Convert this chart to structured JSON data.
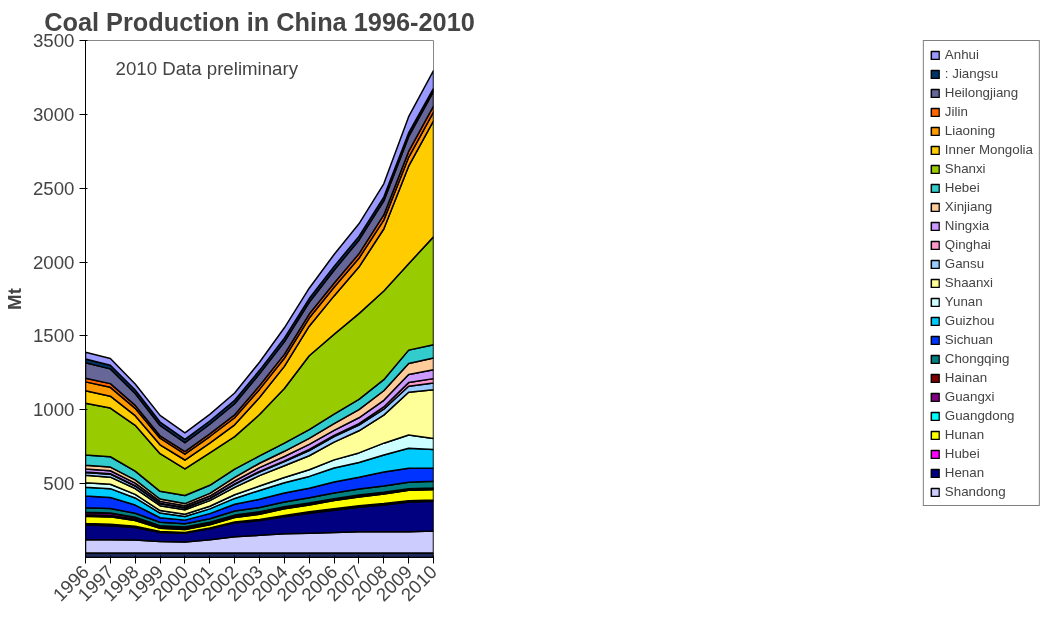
{
  "chart_data": {
    "type": "area",
    "stacked": true,
    "title": "Coal Production in China 1996-2010",
    "ylabel": "Mt",
    "annotations": [
      "2010 Data preliminary"
    ],
    "x": [
      1996,
      1997,
      1998,
      1999,
      2000,
      2001,
      2002,
      2003,
      2004,
      2005,
      2006,
      2007,
      2008,
      2009,
      2010
    ],
    "xlim": [
      1996,
      2010
    ],
    "xticks": [
      1996,
      1997,
      1998,
      1999,
      2000,
      2001,
      2002,
      2003,
      2004,
      2005,
      2006,
      2007,
      2008,
      2009,
      2010
    ],
    "ylim": [
      0,
      3500
    ],
    "yticks": [
      500,
      1000,
      1500,
      2000,
      2500,
      3000,
      3500
    ],
    "grid": false,
    "legend": "right",
    "series": [
      {
        "color": "#1f2a5c",
        "values": [
          30,
          30,
          30,
          30,
          30,
          30,
          30,
          30,
          30,
          30,
          30,
          30,
          30,
          30,
          30
        ]
      },
      {
        "name": "Shandong",
        "color": "#ccccff",
        "values": [
          90,
          90,
          88,
          78,
          75,
          90,
          110,
          120,
          130,
          135,
          140,
          145,
          145,
          145,
          150
        ]
      },
      {
        "name": "Henan",
        "color": "#000080",
        "values": [
          100,
          95,
          85,
          62,
          60,
          75,
          95,
          100,
          115,
          135,
          150,
          165,
          180,
          200,
          200
        ]
      },
      {
        "name": "Hubei",
        "color": "#ff00ff",
        "values": [
          10,
          10,
          8,
          6,
          5,
          5,
          6,
          8,
          10,
          10,
          10,
          10,
          10,
          10,
          10
        ]
      },
      {
        "name": "Hunan",
        "color": "#ffff00",
        "values": [
          50,
          50,
          40,
          22,
          20,
          22,
          30,
          35,
          45,
          45,
          55,
          60,
          65,
          70,
          70
        ]
      },
      {
        "name": "Guangdong",
        "color": "#00ffff",
        "values": [
          10,
          10,
          8,
          6,
          5,
          5,
          5,
          5,
          5,
          5,
          4,
          4,
          3,
          2,
          2
        ]
      },
      {
        "name": "Guangxi",
        "color": "#800080",
        "values": [
          15,
          15,
          12,
          10,
          10,
          10,
          10,
          10,
          8,
          8,
          8,
          8,
          8,
          8,
          8
        ]
      },
      {
        "name": "Hainan",
        "color": "#800000",
        "values": [
          1,
          1,
          1,
          1,
          1,
          1,
          1,
          1,
          1,
          1,
          1,
          1,
          1,
          1,
          1
        ]
      },
      {
        "name": "Chongqing",
        "color": "#008080",
        "values": [
          30,
          30,
          28,
          24,
          22,
          24,
          28,
          30,
          32,
          35,
          38,
          40,
          42,
          43,
          45
        ]
      },
      {
        "name": "Sichuan",
        "color": "#0033ff",
        "values": [
          80,
          75,
          55,
          30,
          25,
          35,
          45,
          55,
          60,
          65,
          75,
          80,
          95,
          95,
          90
        ]
      },
      {
        "name": "Guizhou",
        "color": "#00ccff",
        "values": [
          60,
          60,
          48,
          32,
          25,
          32,
          40,
          60,
          70,
          80,
          95,
          100,
          115,
          135,
          125
        ]
      },
      {
        "name": "Yunan",
        "color": "#ccffff",
        "values": [
          30,
          30,
          24,
          17,
          15,
          18,
          25,
          30,
          35,
          45,
          55,
          65,
          80,
          90,
          75
        ]
      },
      {
        "name": "Shaanxi",
        "color": "#ffff99",
        "values": [
          50,
          48,
          40,
          33,
          30,
          38,
          50,
          70,
          80,
          95,
          120,
          150,
          190,
          290,
          330
        ]
      },
      {
        "name": "Gansu",
        "color": "#99ccff",
        "values": [
          20,
          20,
          17,
          13,
          12,
          14,
          20,
          25,
          28,
          35,
          37,
          38,
          40,
          40,
          45
        ]
      },
      {
        "name": "Qinghai",
        "color": "#ff99cc",
        "values": [
          3,
          3,
          3,
          3,
          3,
          3,
          3,
          4,
          5,
          7,
          8,
          10,
          15,
          25,
          30
        ]
      },
      {
        "name": "Ningxia",
        "color": "#cc99ff",
        "values": [
          20,
          20,
          17,
          13,
          12,
          14,
          20,
          25,
          30,
          35,
          35,
          40,
          45,
          55,
          60
        ]
      },
      {
        "name": "Xinjiang",
        "color": "#ffcc99",
        "values": [
          25,
          25,
          21,
          16,
          15,
          18,
          25,
          30,
          35,
          40,
          45,
          55,
          65,
          75,
          80
        ]
      },
      {
        "name": "Hebei",
        "color": "#33cccc",
        "values": [
          70,
          70,
          60,
          52,
          55,
          55,
          55,
          50,
          55,
          60,
          65,
          70,
          75,
          90,
          90
        ]
      },
      {
        "name": "Shanxi",
        "color": "#99cc00",
        "values": [
          350,
          330,
          310,
          255,
          180,
          220,
          220,
          280,
          370,
          500,
          540,
          580,
          600,
          585,
          730
        ]
      },
      {
        "name": "Inner Mongolia",
        "color": "#ffcc00",
        "values": [
          85,
          80,
          65,
          60,
          60,
          65,
          80,
          115,
          150,
          200,
          260,
          315,
          420,
          660,
          785
        ]
      },
      {
        "name": "Liaoning",
        "color": "#ff9900",
        "values": [
          60,
          60,
          50,
          45,
          40,
          45,
          48,
          55,
          55,
          55,
          58,
          60,
          60,
          60,
          60
        ]
      },
      {
        "name": "Jilin",
        "color": "#ff6600",
        "values": [
          25,
          25,
          20,
          16,
          17,
          18,
          20,
          25,
          26,
          27,
          28,
          30,
          35,
          40,
          40
        ]
      },
      {
        "name": "Heilongjiang",
        "color": "#666699",
        "values": [
          105,
          100,
          80,
          70,
          60,
          65,
          75,
          80,
          85,
          80,
          88,
          92,
          95,
          100,
          100
        ]
      },
      {
        "name": ": Jiangsu",
        "color": "#003366",
        "values": [
          25,
          25,
          24,
          23,
          22,
          22,
          23,
          24,
          25,
          25,
          26,
          26,
          26,
          25,
          20
        ]
      },
      {
        "name": "Anhui",
        "color": "#9999ff",
        "values": [
          45,
          45,
          40,
          45,
          45,
          45,
          50,
          55,
          70,
          70,
          80,
          85,
          90,
          110,
          120
        ]
      }
    ]
  }
}
